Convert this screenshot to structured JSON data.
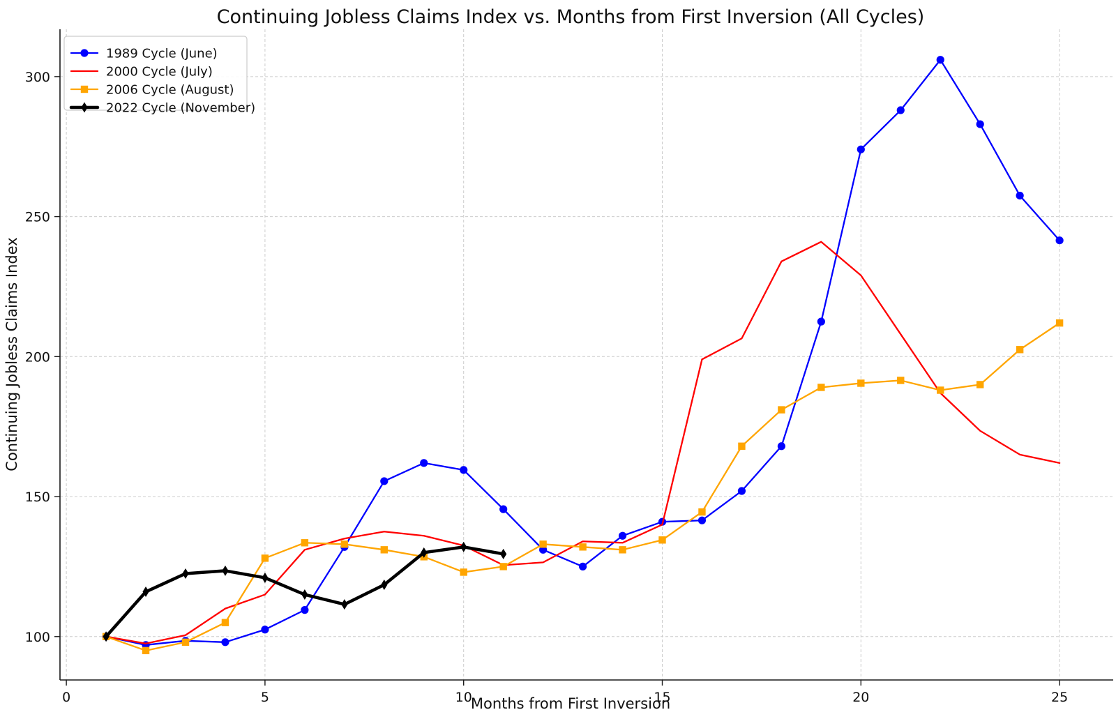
{
  "chart_data": {
    "type": "line",
    "title": "Continuing Jobless Claims Index vs. Months from First Inversion (All Cycles)",
    "xlabel": "Months from First Inversion",
    "ylabel": "Continuing Jobless Claims Index",
    "x_ticks": [
      0,
      5,
      10,
      15,
      20,
      25
    ],
    "y_ticks": [
      100,
      150,
      200,
      250,
      300
    ],
    "xlim": [
      -0.16,
      26.35
    ],
    "ylim": [
      84.5,
      316.9
    ],
    "grid": true,
    "legend_position": "upper left",
    "series": [
      {
        "name": "1989 Cycle (June)",
        "color": "#0000ff",
        "marker": "circle",
        "line_width": 2.3,
        "x": [
          1,
          2,
          3,
          4,
          5,
          6,
          7,
          8,
          9,
          10,
          11,
          12,
          13,
          14,
          15,
          16,
          17,
          18,
          19,
          20,
          21,
          22,
          23,
          24,
          25
        ],
        "values": [
          100,
          97,
          98.5,
          98,
          102.5,
          109.5,
          132,
          155.5,
          162,
          159.5,
          145.5,
          131,
          125,
          136,
          141,
          141.5,
          152,
          168,
          212.5,
          274,
          288,
          306,
          283,
          257.5,
          241.5
        ]
      },
      {
        "name": "2000 Cycle (July)",
        "color": "#ff0000",
        "marker": "none",
        "line_width": 2.3,
        "x": [
          1,
          2,
          3,
          4,
          5,
          6,
          7,
          8,
          9,
          10,
          11,
          12,
          13,
          14,
          15,
          16,
          17,
          18,
          19,
          20,
          21,
          22,
          23,
          24,
          25
        ],
        "values": [
          100,
          97.5,
          100.5,
          110,
          115,
          131,
          135,
          137.5,
          136,
          132.5,
          125.5,
          126.5,
          134,
          133.5,
          140,
          199,
          206.5,
          234,
          241,
          229,
          208,
          187,
          173.5,
          165,
          162
        ]
      },
      {
        "name": "2006 Cycle (August)",
        "color": "#ffa500",
        "marker": "square",
        "line_width": 2.3,
        "x": [
          1,
          2,
          3,
          4,
          5,
          6,
          7,
          8,
          9,
          10,
          11,
          12,
          13,
          14,
          15,
          16,
          17,
          18,
          19,
          20,
          21,
          22,
          23,
          24,
          25
        ],
        "values": [
          100,
          95,
          98,
          105,
          128,
          133.5,
          133,
          131,
          128.5,
          123,
          125,
          133,
          132,
          131,
          134.5,
          144.5,
          168,
          181,
          189,
          190.5,
          191.5,
          188,
          190,
          202.5,
          212
        ]
      },
      {
        "name": "2022 Cycle (November)",
        "color": "#000000",
        "marker": "thin-diamond",
        "line_width": 4.5,
        "x": [
          1,
          2,
          3,
          4,
          5,
          6,
          7,
          8,
          9,
          10,
          11
        ],
        "values": [
          100,
          116,
          122.5,
          123.5,
          121,
          115,
          111.5,
          118.5,
          130,
          132,
          129.5
        ]
      }
    ]
  }
}
